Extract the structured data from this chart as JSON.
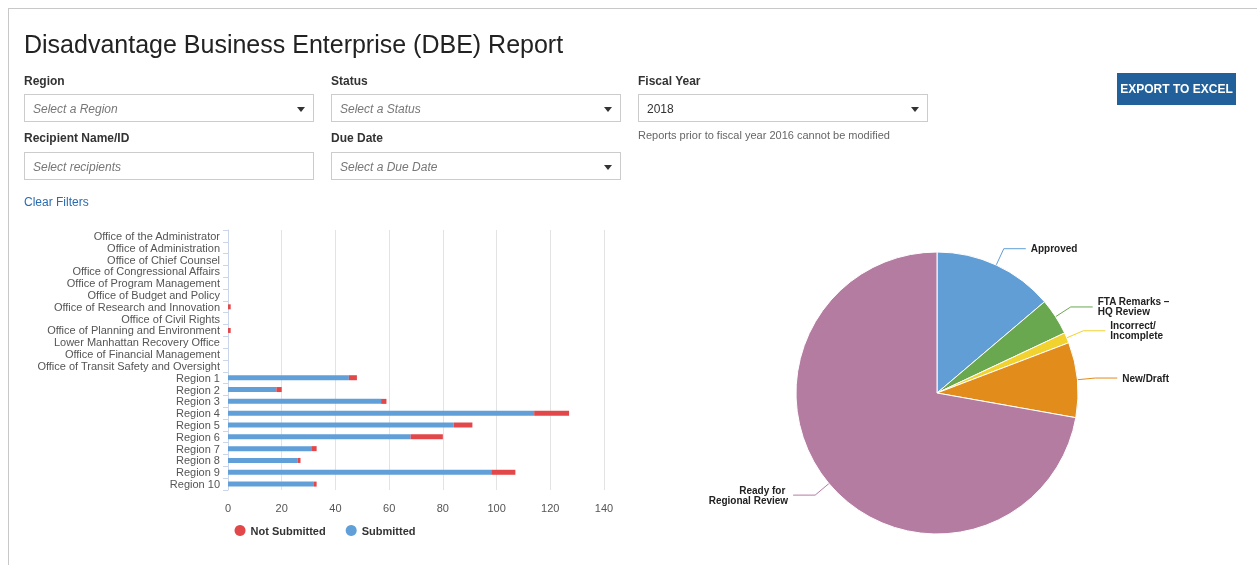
{
  "chart_data": [
    {
      "type": "other",
      "title": "Disadvantage Business Enterprise (DBE) Report",
      "annotations": [
        "Region",
        "Select a Region",
        "Status",
        "Select a Status",
        "Fiscal Year",
        "2018",
        "EXPORT TO EXCEL",
        "Recipient Name/ID",
        "Select recipients",
        "Due Date",
        "Select a Due Date",
        "Reports prior to fiscal year 2016 cannot be modified",
        "Clear Filters"
      ]
    },
    {
      "type": "bar",
      "orientation": "horizontal",
      "stacked": true,
      "categories": [
        "Office of the Administrator",
        "Office of Administration",
        "Office of Chief Counsel",
        "Office of Congressional Affairs",
        "Office of Program Management",
        "Office of Budget and Policy",
        "Office of Research and Innovation",
        "Office of Civil Rights",
        "Office of Planning and Environment",
        "Lower Manhattan Recovery Office",
        "Office of Financial Management",
        "Office of Transit Safety and Oversight",
        "Region 1",
        "Region 2",
        "Region 3",
        "Region 4",
        "Region 5",
        "Region 6",
        "Region 7",
        "Region 8",
        "Region 9",
        "Region 10"
      ],
      "series": [
        {
          "name": "Submitted",
          "color": "#619fd8",
          "values": [
            0,
            0,
            0,
            0,
            0,
            0,
            0,
            0,
            0,
            0,
            0,
            0,
            45,
            18,
            57,
            114,
            84,
            68,
            31,
            26,
            98,
            32
          ]
        },
        {
          "name": "Not Submitted",
          "color": "#e2474a",
          "values": [
            0,
            0,
            0,
            0,
            0,
            0,
            1,
            0,
            1,
            0,
            0,
            0,
            3,
            2,
            2,
            13,
            7,
            12,
            2,
            1,
            9,
            1
          ]
        }
      ],
      "xlim": [
        0,
        140
      ],
      "xticks": [
        0,
        20,
        40,
        60,
        80,
        100,
        120,
        140
      ],
      "grid": "x",
      "legend": "bottom"
    },
    {
      "type": "pie",
      "categories": [
        "Approved",
        "FTA Remarks – HQ Review",
        "Incorrect/Incomplete",
        "New/Draft",
        "Ready for Regional Review"
      ],
      "values": [
        13.8,
        4.2,
        1.2,
        8.6,
        72.2
      ],
      "colors": [
        "#619ed6",
        "#6aa84f",
        "#f2d22e",
        "#e28c1c",
        "#b57ca2"
      ]
    }
  ]
}
